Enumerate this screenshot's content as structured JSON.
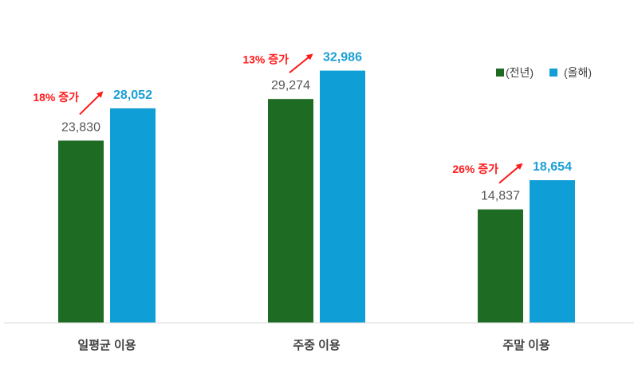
{
  "chart_data": {
    "type": "bar",
    "title": "",
    "xlabel": "",
    "ylabel": "",
    "ylim": [
      0,
      41700
    ],
    "grid": false,
    "legend_position": "top-right",
    "categories": [
      "일평균 이용",
      "주중 이용",
      "주말 이용"
    ],
    "series": [
      {
        "name": "(전년)",
        "color": "#1e6b24",
        "values": [
          23830,
          29274,
          14837
        ],
        "labels": [
          "23,830",
          "29,274",
          "14,837"
        ]
      },
      {
        "name": "(올해)",
        "color": "#0f9fd6",
        "values": [
          28052,
          32986,
          18654
        ],
        "labels": [
          "28,052",
          "32,986",
          "18,654"
        ]
      }
    ],
    "annotations": [
      "18% 증가",
      "13% 증가",
      "26% 증가"
    ],
    "annotation_color": "#ff1a1a"
  }
}
